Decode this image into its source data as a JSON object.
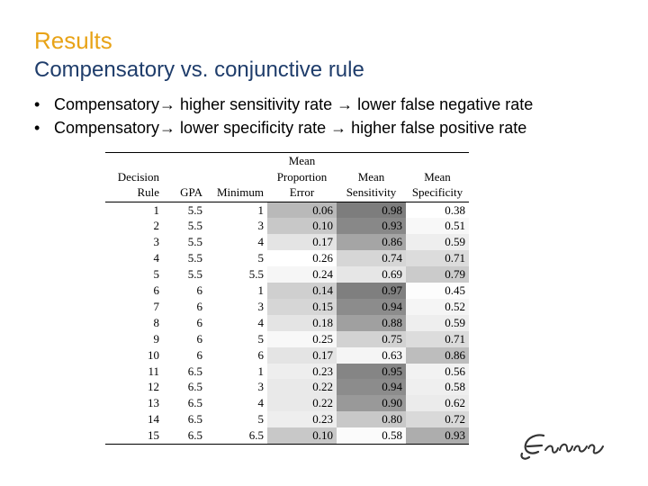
{
  "slide": {
    "title": "Results",
    "subtitle": "Compensatory vs. conjunctive rule",
    "bullets": [
      "Compensatory→ higher sensitivity rate → lower false negative rate",
      "Compensatory→ lower specificity rate → higher false positive rate"
    ]
  },
  "table": {
    "headers": {
      "rule": [
        "Decision",
        "Rule"
      ],
      "gpa": [
        "GPA"
      ],
      "minimum": [
        "Minimum"
      ],
      "error": [
        "Mean",
        "Proportion",
        "Error"
      ],
      "sensitivity": [
        "Mean",
        "Sensitivity"
      ],
      "specificity": [
        "Mean",
        "Specificity"
      ]
    },
    "rows": [
      {
        "rule": "1",
        "gpa": "5.5",
        "minimum": "1",
        "error": "0.06",
        "sensitivity": "0.98",
        "specificity": "0.38"
      },
      {
        "rule": "2",
        "gpa": "5.5",
        "minimum": "3",
        "error": "0.10",
        "sensitivity": "0.93",
        "specificity": "0.51"
      },
      {
        "rule": "3",
        "gpa": "5.5",
        "minimum": "4",
        "error": "0.17",
        "sensitivity": "0.86",
        "specificity": "0.59"
      },
      {
        "rule": "4",
        "gpa": "5.5",
        "minimum": "5",
        "error": "0.26",
        "sensitivity": "0.74",
        "specificity": "0.71"
      },
      {
        "rule": "5",
        "gpa": "5.5",
        "minimum": "5.5",
        "error": "0.24",
        "sensitivity": "0.69",
        "specificity": "0.79"
      },
      {
        "rule": "6",
        "gpa": "6",
        "minimum": "1",
        "error": "0.14",
        "sensitivity": "0.97",
        "specificity": "0.45"
      },
      {
        "rule": "7",
        "gpa": "6",
        "minimum": "3",
        "error": "0.15",
        "sensitivity": "0.94",
        "specificity": "0.52"
      },
      {
        "rule": "8",
        "gpa": "6",
        "minimum": "4",
        "error": "0.18",
        "sensitivity": "0.88",
        "specificity": "0.59"
      },
      {
        "rule": "9",
        "gpa": "6",
        "minimum": "5",
        "error": "0.25",
        "sensitivity": "0.75",
        "specificity": "0.71"
      },
      {
        "rule": "10",
        "gpa": "6",
        "minimum": "6",
        "error": "0.17",
        "sensitivity": "0.63",
        "specificity": "0.86"
      },
      {
        "rule": "11",
        "gpa": "6.5",
        "minimum": "1",
        "error": "0.23",
        "sensitivity": "0.95",
        "specificity": "0.56"
      },
      {
        "rule": "12",
        "gpa": "6.5",
        "minimum": "3",
        "error": "0.22",
        "sensitivity": "0.94",
        "specificity": "0.58"
      },
      {
        "rule": "13",
        "gpa": "6.5",
        "minimum": "4",
        "error": "0.22",
        "sensitivity": "0.90",
        "specificity": "0.62"
      },
      {
        "rule": "14",
        "gpa": "6.5",
        "minimum": "5",
        "error": "0.23",
        "sensitivity": "0.80",
        "specificity": "0.72"
      },
      {
        "rule": "15",
        "gpa": "6.5",
        "minimum": "6.5",
        "error": "0.10",
        "sensitivity": "0.58",
        "specificity": "0.93"
      }
    ],
    "shading": {
      "error": [
        "#b9b9b9",
        "#c8c8c8",
        "#e4e4e4",
        "#ffffff",
        "#f6f6f6",
        "#cfcfcf",
        "#d6d6d6",
        "#e4e4e4",
        "#f8f8f8",
        "#e4e4e4",
        "#eeeeee",
        "#e9e9e9",
        "#e9e9e9",
        "#eeeeee",
        "#c8c8c8"
      ],
      "sensitivity": [
        "#7d7d7d",
        "#888888",
        "#a5a5a5",
        "#d6d6d6",
        "#e6e6e6",
        "#7f7f7f",
        "#8c8c8c",
        "#a0a0a0",
        "#d2d2d2",
        "#f5f5f5",
        "#858585",
        "#8c8c8c",
        "#999999",
        "#c8c8c8",
        "#fbfbfb"
      ],
      "specificity": [
        "#ffffff",
        "#f8f8f8",
        "#eeeeee",
        "#dcdcdc",
        "#cbcbcb",
        "#fdfdfd",
        "#f5f5f5",
        "#eeeeee",
        "#dcdcdc",
        "#bdbdbd",
        "#f2f2f2",
        "#efefef",
        "#ebebeb",
        "#d9d9d9",
        "#adadad"
      ]
    }
  },
  "colors": {
    "title": "#e8a317",
    "subtitle": "#1f3d6b"
  },
  "logo": {
    "icon": "erasmus-signature-logo"
  }
}
